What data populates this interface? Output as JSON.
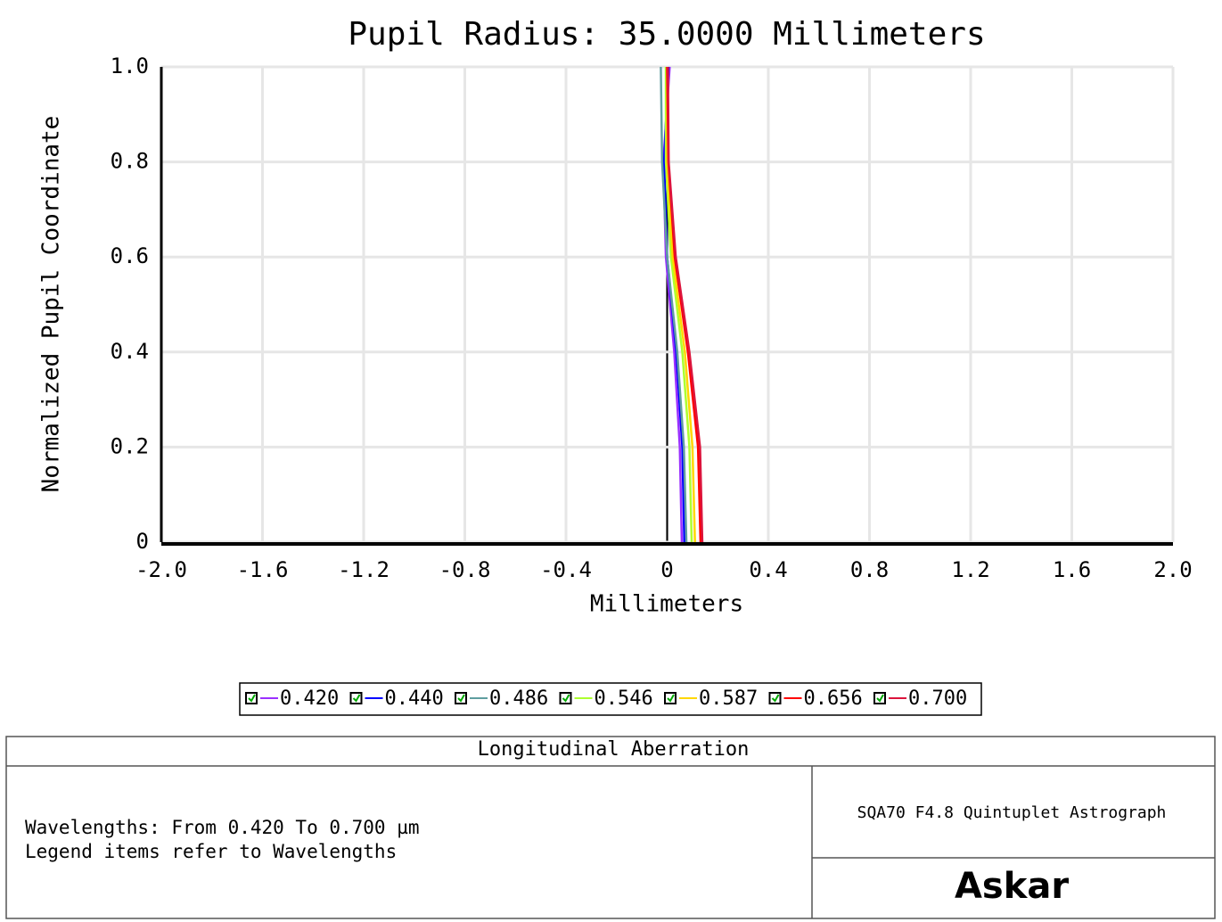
{
  "chart_data": {
    "type": "line",
    "title": "Pupil Radius: 35.0000 Millimeters",
    "x_label": "Millimeters",
    "y_label": "Normalized Pupil Coordinate",
    "y": [
      0,
      0.2,
      0.4,
      0.6,
      0.8,
      1.0
    ],
    "series": [
      {
        "name": "0.420",
        "color": "#9b30ff",
        "values": [
          0.058,
          0.05,
          0.028,
          -0.005,
          -0.015,
          0.01
        ]
      },
      {
        "name": "0.440",
        "color": "#0000ff",
        "values": [
          0.068,
          0.06,
          0.036,
          0.0,
          -0.012,
          0.005
        ]
      },
      {
        "name": "0.486",
        "color": "#5f9ea0",
        "values": [
          0.076,
          0.066,
          0.04,
          0.0,
          -0.02,
          -0.025
        ]
      },
      {
        "name": "0.546",
        "color": "#adff2f",
        "values": [
          0.097,
          0.088,
          0.06,
          0.015,
          -0.005,
          -0.005
        ]
      },
      {
        "name": "0.587",
        "color": "#ffd700",
        "values": [
          0.11,
          0.1,
          0.07,
          0.022,
          0.0,
          0.0
        ]
      },
      {
        "name": "0.656",
        "color": "#ff0000",
        "values": [
          0.132,
          0.122,
          0.082,
          0.03,
          0.005,
          0.0
        ]
      },
      {
        "name": "0.700",
        "color": "#dc143c",
        "values": [
          0.139,
          0.13,
          0.088,
          0.034,
          0.006,
          0.003
        ]
      }
    ],
    "xlim": [
      -2.0,
      2.0
    ],
    "xticks": [
      {
        "value": -2.0,
        "label": "-2.0"
      },
      -1.6,
      -1.2,
      -0.8,
      -0.4,
      0,
      0.4,
      0.8,
      1.2,
      1.6,
      {
        "value": 2.0,
        "label": "2.0"
      }
    ],
    "ylim": [
      0,
      1.0
    ],
    "yticks": [
      0,
      0.2,
      0.4,
      0.6,
      0.8,
      {
        "value": 1.0,
        "label": "1.0"
      }
    ],
    "grid": true
  },
  "footer": {
    "heading": "Longitudinal Aberration",
    "notes": [
      "Wavelengths: From 0.420 To 0.700 µm",
      "Legend items refer to Wavelengths"
    ],
    "system": "SQA70 F4.8 Quintuplet Astrograph",
    "brand": "Askar"
  }
}
